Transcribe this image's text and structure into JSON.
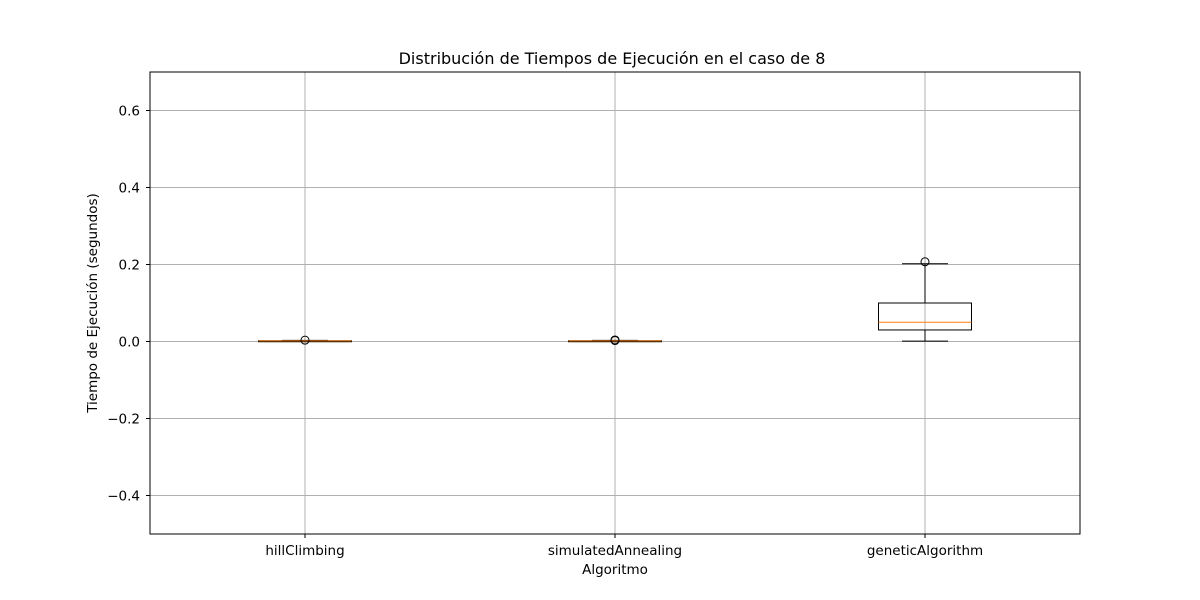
{
  "chart_data": {
    "type": "box",
    "title": "Distribución de Tiempos de Ejecución en el caso de 8",
    "xlabel": "Algoritmo",
    "ylabel": "Tiempo de Ejecución (segundos)",
    "ylim": [
      -0.5,
      0.7
    ],
    "yticks": [
      -0.4,
      -0.2,
      0.0,
      0.2,
      0.4,
      0.6
    ],
    "ytick_labels": [
      "−0.4",
      "−0.2",
      "0.0",
      "0.2",
      "0.4",
      "0.6"
    ],
    "grid": true,
    "categories": [
      "hillClimbing",
      "simulatedAnnealing",
      "geneticAlgorithm"
    ],
    "boxes": [
      {
        "category": "hillClimbing",
        "whisker_low": 0.0005,
        "q1": 0.001,
        "median": 0.0015,
        "q3": 0.002,
        "whisker_high": 0.003,
        "outliers": [
          0.0035
        ]
      },
      {
        "category": "simulatedAnnealing",
        "whisker_low": 0.0005,
        "q1": 0.001,
        "median": 0.0015,
        "q3": 0.002,
        "whisker_high": 0.003,
        "outliers": [
          0.004,
          0.0025
        ]
      },
      {
        "category": "geneticAlgorithm",
        "whisker_low": 0.001,
        "q1": 0.03,
        "median": 0.05,
        "q3": 0.1,
        "whisker_high": 0.202,
        "outliers": [
          0.207
        ]
      }
    ],
    "colors": {
      "box": "#000000",
      "median": "#ff7f0e",
      "grid": "#b0b0b0"
    }
  }
}
